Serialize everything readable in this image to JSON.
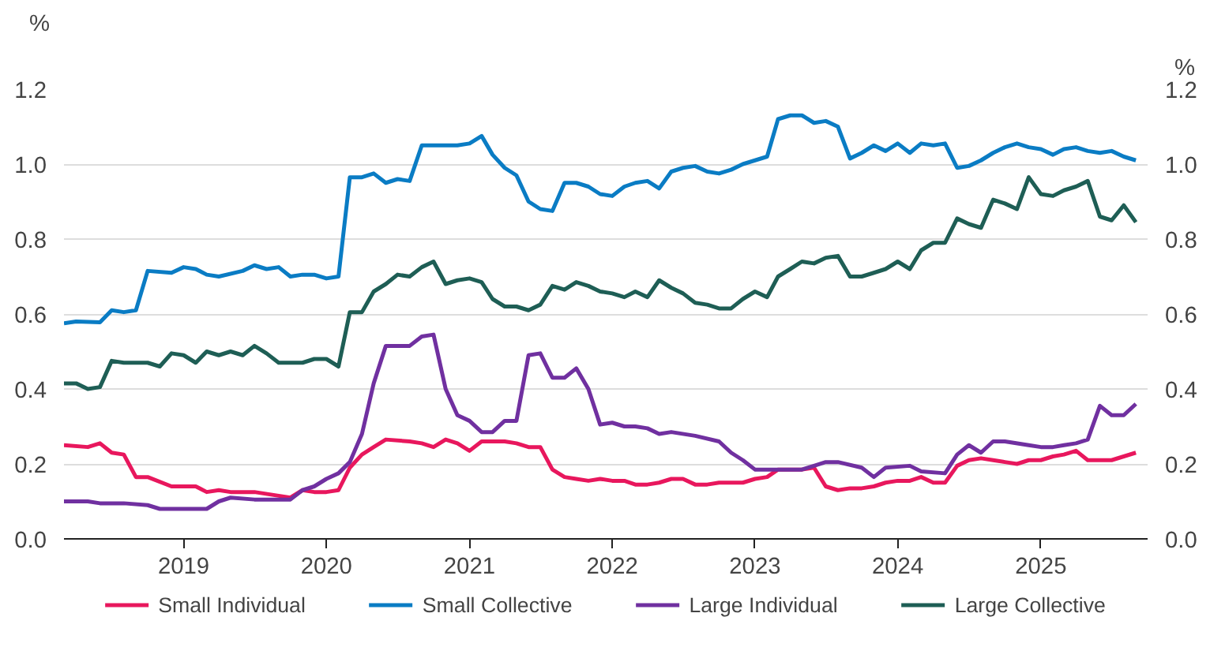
{
  "chart_data": {
    "type": "line",
    "ylabel": "%",
    "y2label": "%",
    "xlim": [
      "2018-03",
      "2025-10"
    ],
    "xticks": [
      {
        "value": "2019-01",
        "label": "2019"
      },
      {
        "value": "2020-01",
        "label": "2020"
      },
      {
        "value": "2021-01",
        "label": "2021"
      },
      {
        "value": "2022-01",
        "label": "2022"
      },
      {
        "value": "2023-01",
        "label": "2023"
      },
      {
        "value": "2024-01",
        "label": "2024"
      },
      {
        "value": "2025-01",
        "label": "2025"
      }
    ],
    "ylim": [
      0,
      1.2
    ],
    "yticks": [
      {
        "value": 0,
        "label": "0.0"
      },
      0.2,
      0.4,
      0.6,
      0.8,
      {
        "value": 1,
        "label": "1.0"
      },
      1.2
    ],
    "y2lim": [
      0,
      1.2
    ],
    "y2ticks": [
      {
        "value": 0,
        "label": "0.0"
      },
      0.2,
      0.4,
      0.6,
      0.8,
      {
        "value": 1,
        "label": "1.0"
      },
      1.2
    ],
    "grid": "y",
    "legend": "bottom",
    "line_style": "solid",
    "series": [
      {
        "name": "Small Individual",
        "color": "#e8175d",
        "x": [
          "2018-03",
          "2018-05",
          "2018-06",
          "2018-07",
          "2018-08",
          "2018-09",
          "2018-10",
          "2018-12",
          "2019-01",
          "2019-02",
          "2019-03",
          "2019-04",
          "2019-05",
          "2019-07",
          "2019-09",
          "2019-10",
          "2019-11",
          "2019-12",
          "2020-01",
          "2020-02",
          "2020-03",
          "2020-04",
          "2020-05",
          "2020-06",
          "2020-08",
          "2020-09",
          "2020-10",
          "2020-11",
          "2020-12",
          "2021-01",
          "2021-02",
          "2021-04",
          "2021-05",
          "2021-06",
          "2021-07",
          "2021-08",
          "2021-09",
          "2021-10",
          "2021-11",
          "2021-12",
          "2022-01",
          "2022-02",
          "2022-03",
          "2022-04",
          "2022-05",
          "2022-06",
          "2022-07",
          "2022-08",
          "2022-09",
          "2022-10",
          "2022-11",
          "2022-12",
          "2023-01",
          "2023-02",
          "2023-03",
          "2023-05",
          "2023-06",
          "2023-07",
          "2023-08",
          "2023-09",
          "2023-10",
          "2023-11",
          "2023-12",
          "2024-01",
          "2024-02",
          "2024-03",
          "2024-04",
          "2024-05",
          "2024-06",
          "2024-07",
          "2024-08",
          "2024-09",
          "2024-10",
          "2024-11",
          "2024-12",
          "2025-01",
          "2025-02",
          "2025-03",
          "2025-04",
          "2025-05",
          "2025-06",
          "2025-07",
          "2025-08",
          "2025-09"
        ],
        "values": [
          0.25,
          0.245,
          0.255,
          0.23,
          0.225,
          0.165,
          0.165,
          0.14,
          0.14,
          0.14,
          0.125,
          0.13,
          0.125,
          0.125,
          0.115,
          0.11,
          0.13,
          0.125,
          0.125,
          0.13,
          0.19,
          0.225,
          0.245,
          0.265,
          0.26,
          0.255,
          0.245,
          0.265,
          0.255,
          0.235,
          0.26,
          0.26,
          0.255,
          0.245,
          0.245,
          0.185,
          0.165,
          0.16,
          0.155,
          0.16,
          0.155,
          0.155,
          0.145,
          0.145,
          0.15,
          0.16,
          0.16,
          0.145,
          0.145,
          0.15,
          0.15,
          0.15,
          0.16,
          0.165,
          0.185,
          0.185,
          0.19,
          0.14,
          0.13,
          0.135,
          0.135,
          0.14,
          0.15,
          0.155,
          0.155,
          0.165,
          0.15,
          0.15,
          0.195,
          0.21,
          0.215,
          0.21,
          0.205,
          0.2,
          0.21,
          0.21,
          0.22,
          0.225,
          0.235,
          0.21,
          0.21,
          0.21,
          0.22,
          0.23
        ]
      },
      {
        "name": "Small Collective",
        "color": "#0a7cc4",
        "x": [
          "2018-03",
          "2018-04",
          "2018-06",
          "2018-07",
          "2018-08",
          "2018-09",
          "2018-10",
          "2018-12",
          "2019-01",
          "2019-02",
          "2019-03",
          "2019-04",
          "2019-06",
          "2019-07",
          "2019-08",
          "2019-09",
          "2019-10",
          "2019-11",
          "2019-12",
          "2020-01",
          "2020-02",
          "2020-03",
          "2020-04",
          "2020-05",
          "2020-06",
          "2020-07",
          "2020-08",
          "2020-09",
          "2020-10",
          "2020-12",
          "2021-01",
          "2021-02",
          "2021-03",
          "2021-04",
          "2021-05",
          "2021-06",
          "2021-07",
          "2021-08",
          "2021-09",
          "2021-10",
          "2021-11",
          "2021-12",
          "2022-01",
          "2022-02",
          "2022-03",
          "2022-04",
          "2022-05",
          "2022-06",
          "2022-07",
          "2022-08",
          "2022-09",
          "2022-10",
          "2022-11",
          "2022-12",
          "2023-01",
          "2023-02",
          "2023-03",
          "2023-04",
          "2023-05",
          "2023-06",
          "2023-07",
          "2023-08",
          "2023-09",
          "2023-10",
          "2023-11",
          "2023-12",
          "2024-01",
          "2024-02",
          "2024-03",
          "2024-04",
          "2024-05",
          "2024-06",
          "2024-07",
          "2024-08",
          "2024-09",
          "2024-10",
          "2024-11",
          "2024-12",
          "2025-01",
          "2025-02",
          "2025-03",
          "2025-04",
          "2025-05",
          "2025-06",
          "2025-07",
          "2025-08",
          "2025-09"
        ],
        "values": [
          0.575,
          0.58,
          0.578,
          0.61,
          0.605,
          0.61,
          0.715,
          0.71,
          0.725,
          0.72,
          0.705,
          0.7,
          0.715,
          0.73,
          0.72,
          0.725,
          0.7,
          0.705,
          0.705,
          0.695,
          0.7,
          0.965,
          0.965,
          0.975,
          0.95,
          0.96,
          0.955,
          1.05,
          1.05,
          1.05,
          1.055,
          1.075,
          1.025,
          0.99,
          0.97,
          0.9,
          0.88,
          0.875,
          0.95,
          0.95,
          0.94,
          0.92,
          0.915,
          0.94,
          0.95,
          0.955,
          0.935,
          0.98,
          0.99,
          0.995,
          0.98,
          0.975,
          0.985,
          1.0,
          1.01,
          1.02,
          1.12,
          1.13,
          1.13,
          1.11,
          1.115,
          1.1,
          1.015,
          1.03,
          1.05,
          1.035,
          1.055,
          1.03,
          1.055,
          1.05,
          1.055,
          0.99,
          0.995,
          1.01,
          1.03,
          1.045,
          1.055,
          1.045,
          1.04,
          1.025,
          1.04,
          1.045,
          1.035,
          1.03,
          1.035,
          1.02,
          1.01
        ]
      },
      {
        "name": "Large Individual",
        "color": "#7030a0",
        "x": [
          "2018-03",
          "2018-05",
          "2018-06",
          "2018-08",
          "2018-10",
          "2018-11",
          "2019-03",
          "2019-04",
          "2019-05",
          "2019-07",
          "2019-10",
          "2019-11",
          "2019-12",
          "2020-01",
          "2020-02",
          "2020-03",
          "2020-04",
          "2020-05",
          "2020-06",
          "2020-07",
          "2020-08",
          "2020-09",
          "2020-10",
          "2020-11",
          "2020-12",
          "2021-01",
          "2021-02",
          "2021-03",
          "2021-04",
          "2021-05",
          "2021-06",
          "2021-07",
          "2021-08",
          "2021-09",
          "2021-10",
          "2021-11",
          "2021-12",
          "2022-01",
          "2022-02",
          "2022-03",
          "2022-04",
          "2022-05",
          "2022-06",
          "2022-08",
          "2022-10",
          "2022-11",
          "2022-12",
          "2023-01",
          "2023-03",
          "2023-05",
          "2023-06",
          "2023-07",
          "2023-08",
          "2023-10",
          "2023-11",
          "2023-12",
          "2024-02",
          "2024-03",
          "2024-05",
          "2024-06",
          "2024-07",
          "2024-08",
          "2024-09",
          "2024-10",
          "2024-12",
          "2025-01",
          "2025-02",
          "2025-03",
          "2025-04",
          "2025-05",
          "2025-06",
          "2025-07",
          "2025-08",
          "2025-09"
        ],
        "values": [
          0.1,
          0.1,
          0.095,
          0.095,
          0.09,
          0.08,
          0.08,
          0.1,
          0.11,
          0.105,
          0.105,
          0.13,
          0.14,
          0.16,
          0.175,
          0.205,
          0.28,
          0.415,
          0.515,
          0.515,
          0.515,
          0.54,
          0.545,
          0.4,
          0.33,
          0.315,
          0.285,
          0.285,
          0.315,
          0.315,
          0.49,
          0.495,
          0.43,
          0.43,
          0.455,
          0.4,
          0.305,
          0.31,
          0.3,
          0.3,
          0.295,
          0.28,
          0.285,
          0.275,
          0.26,
          0.23,
          0.21,
          0.185,
          0.185,
          0.185,
          0.195,
          0.205,
          0.205,
          0.19,
          0.165,
          0.19,
          0.195,
          0.18,
          0.175,
          0.225,
          0.25,
          0.23,
          0.26,
          0.26,
          0.25,
          0.245,
          0.245,
          0.25,
          0.255,
          0.265,
          0.355,
          0.33,
          0.33,
          0.36
        ]
      },
      {
        "name": "Large Collective",
        "color": "#1e5e55",
        "x": [
          "2018-03",
          "2018-04",
          "2018-05",
          "2018-06",
          "2018-07",
          "2018-08",
          "2018-10",
          "2018-11",
          "2018-12",
          "2019-01",
          "2019-02",
          "2019-03",
          "2019-04",
          "2019-05",
          "2019-06",
          "2019-07",
          "2019-08",
          "2019-09",
          "2019-11",
          "2019-12",
          "2020-01",
          "2020-02",
          "2020-03",
          "2020-04",
          "2020-05",
          "2020-06",
          "2020-07",
          "2020-08",
          "2020-09",
          "2020-10",
          "2020-11",
          "2020-12",
          "2021-01",
          "2021-02",
          "2021-03",
          "2021-04",
          "2021-05",
          "2021-06",
          "2021-07",
          "2021-08",
          "2021-09",
          "2021-10",
          "2021-11",
          "2021-12",
          "2022-01",
          "2022-02",
          "2022-03",
          "2022-04",
          "2022-05",
          "2022-06",
          "2022-07",
          "2022-08",
          "2022-09",
          "2022-10",
          "2022-11",
          "2022-12",
          "2023-01",
          "2023-02",
          "2023-03",
          "2023-04",
          "2023-05",
          "2023-06",
          "2023-07",
          "2023-08",
          "2023-09",
          "2023-10",
          "2023-11",
          "2023-12",
          "2024-01",
          "2024-02",
          "2024-03",
          "2024-04",
          "2024-05",
          "2024-06",
          "2024-07",
          "2024-08",
          "2024-09",
          "2024-10",
          "2024-11",
          "2024-12",
          "2025-01",
          "2025-02",
          "2025-03",
          "2025-04",
          "2025-05",
          "2025-06",
          "2025-07",
          "2025-08",
          "2025-09"
        ],
        "values": [
          0.415,
          0.415,
          0.4,
          0.405,
          0.475,
          0.47,
          0.47,
          0.46,
          0.495,
          0.49,
          0.47,
          0.5,
          0.49,
          0.5,
          0.49,
          0.515,
          0.495,
          0.47,
          0.47,
          0.48,
          0.48,
          0.46,
          0.605,
          0.605,
          0.66,
          0.68,
          0.705,
          0.7,
          0.725,
          0.74,
          0.68,
          0.69,
          0.695,
          0.685,
          0.64,
          0.62,
          0.62,
          0.61,
          0.625,
          0.675,
          0.665,
          0.685,
          0.675,
          0.66,
          0.655,
          0.645,
          0.66,
          0.645,
          0.69,
          0.67,
          0.655,
          0.63,
          0.625,
          0.615,
          0.615,
          0.64,
          0.66,
          0.645,
          0.7,
          0.72,
          0.74,
          0.735,
          0.75,
          0.755,
          0.7,
          0.7,
          0.71,
          0.72,
          0.74,
          0.72,
          0.77,
          0.79,
          0.79,
          0.855,
          0.84,
          0.83,
          0.905,
          0.895,
          0.88,
          0.965,
          0.92,
          0.915,
          0.93,
          0.94,
          0.955,
          0.86,
          0.85,
          0.89,
          0.845
        ]
      }
    ]
  }
}
